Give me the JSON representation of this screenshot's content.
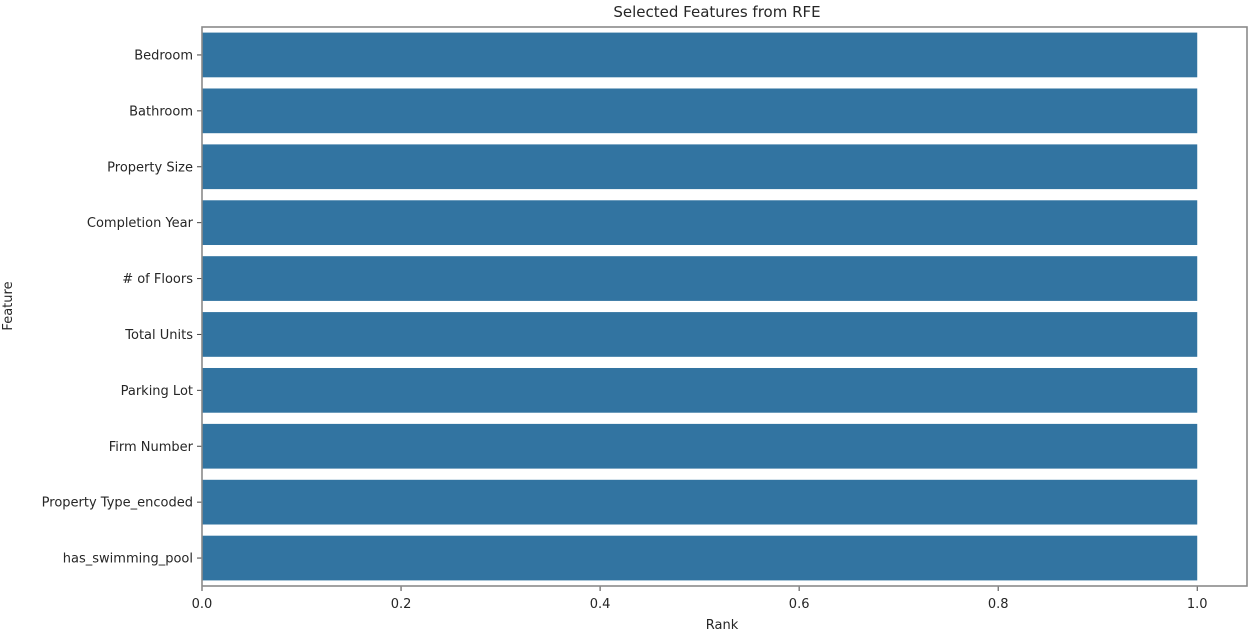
{
  "chart_data": {
    "type": "bar",
    "orientation": "horizontal",
    "title": "Selected Features from RFE",
    "xlabel": "Rank",
    "ylabel": "Feature",
    "categories": [
      "Bedroom",
      "Bathroom",
      "Property Size",
      "Completion Year",
      "# of Floors",
      "Total Units",
      "Parking Lot",
      "Firm Number",
      "Property Type_encoded",
      "has_swimming_pool"
    ],
    "values": [
      1.0,
      1.0,
      1.0,
      1.0,
      1.0,
      1.0,
      1.0,
      1.0,
      1.0,
      1.0
    ],
    "xlim": [
      0,
      1.05
    ],
    "xticks": [
      0.0,
      0.2,
      0.4,
      0.6,
      0.8,
      1.0
    ],
    "xtick_labels": [
      "0.0",
      "0.2",
      "0.4",
      "0.6",
      "0.8",
      "1.0"
    ],
    "grid": false,
    "bar_color": "#3274a1"
  }
}
